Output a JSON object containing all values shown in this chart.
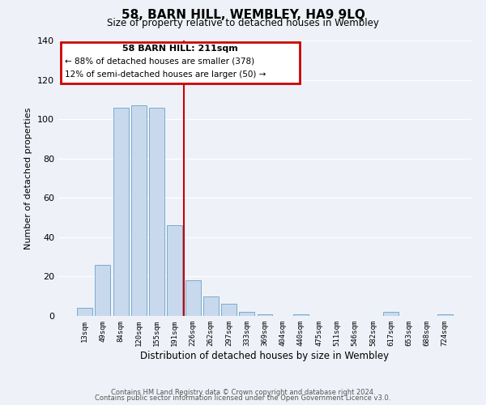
{
  "title": "58, BARN HILL, WEMBLEY, HA9 9LQ",
  "subtitle": "Size of property relative to detached houses in Wembley",
  "xlabel": "Distribution of detached houses by size in Wembley",
  "ylabel": "Number of detached properties",
  "bar_labels": [
    "13sqm",
    "49sqm",
    "84sqm",
    "120sqm",
    "155sqm",
    "191sqm",
    "226sqm",
    "262sqm",
    "297sqm",
    "333sqm",
    "369sqm",
    "404sqm",
    "440sqm",
    "475sqm",
    "511sqm",
    "546sqm",
    "582sqm",
    "617sqm",
    "653sqm",
    "688sqm",
    "724sqm"
  ],
  "bar_values": [
    4,
    26,
    106,
    107,
    106,
    46,
    18,
    10,
    6,
    2,
    1,
    0,
    1,
    0,
    0,
    0,
    0,
    2,
    0,
    0,
    1
  ],
  "bar_color": "#c8d9ed",
  "bar_edge_color": "#7aaad0",
  "vline_x": 5.5,
  "vline_color": "#cc0000",
  "box_text_line1": "58 BARN HILL: 211sqm",
  "box_text_line2": "← 88% of detached houses are smaller (378)",
  "box_text_line3": "12% of semi-detached houses are larger (50) →",
  "box_color": "#cc0000",
  "ylim": [
    0,
    140
  ],
  "yticks": [
    0,
    20,
    40,
    60,
    80,
    100,
    120,
    140
  ],
  "footer_line1": "Contains HM Land Registry data © Crown copyright and database right 2024.",
  "footer_line2": "Contains public sector information licensed under the Open Government Licence v3.0.",
  "background_color": "#eef2f8",
  "plot_bg_color": "#eef2f8",
  "grid_color": "#ffffff"
}
